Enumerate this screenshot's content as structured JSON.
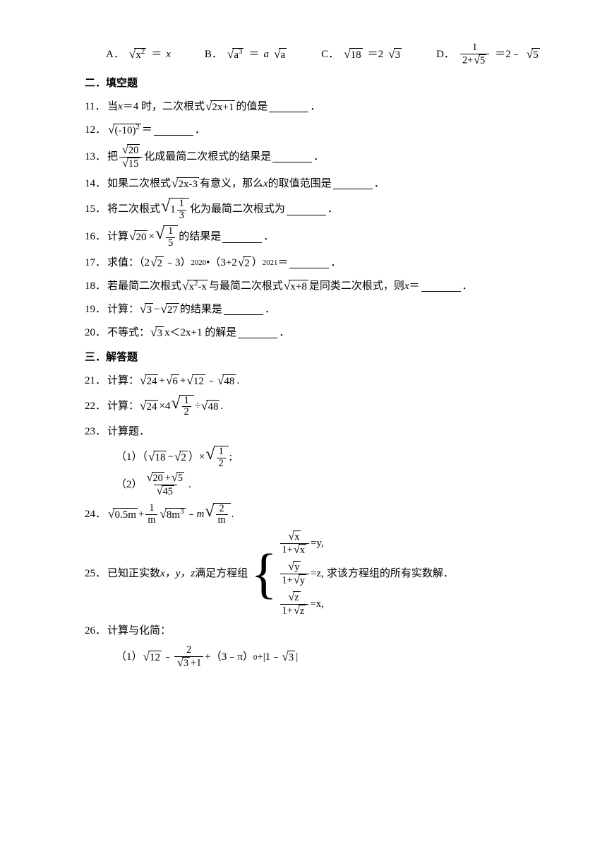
{
  "colors": {
    "text": "#000000",
    "bg": "#ffffff",
    "rule": "#000000"
  },
  "typography": {
    "body_pt": 15,
    "line_height": 1.8,
    "font": "SimSun / Times"
  },
  "q10": {
    "A": {
      "label": "A．",
      "lhs": "√(x²)",
      "eq": "＝",
      "rhs_var": "x"
    },
    "B": {
      "label": "B．",
      "lhs": "√(a³)",
      "eq": "＝",
      "rhs_a": "a",
      "rhs_rad": "a"
    },
    "C": {
      "label": "C．",
      "rad": "18",
      "eq": "＝2",
      "rhs_rad": "3"
    },
    "D": {
      "label": "D．",
      "frac_num": "1",
      "frac_den_pre": "2+",
      "frac_den_rad": "5",
      "eq": "＝2﹣",
      "rhs_rad": "5"
    }
  },
  "sec2": "二．填空题",
  "q11": {
    "num": "11．",
    "a": "当 ",
    "var": "x",
    "b": "＝4 时，二次根式",
    "rad": "2x+1",
    "c": "的值是",
    "d": "．"
  },
  "q12": {
    "num": "12．",
    "rad": "(-10)",
    "exp": "2",
    "eq": "＝",
    "d": "．"
  },
  "q13": {
    "num": "13．",
    "a": "把",
    "num_r": "20",
    "den_r": "15",
    "b": "化成最简二次根式的结果是",
    "d": "．"
  },
  "q14": {
    "num": "14．",
    "a": "如果二次根式",
    "rad": "2x-3",
    "b": "有意义，那么 ",
    "var": "x",
    "c": " 的取值范围是",
    "d": "．"
  },
  "q15": {
    "num": "15．",
    "a": "将二次根式",
    "mix_w": "1",
    "mix_n": "1",
    "mix_d": "3",
    "b": "化为最简二次根式为",
    "d": "．"
  },
  "q16": {
    "num": "16．",
    "a": "计算",
    "r1": "20",
    "op": "×",
    "fn": "1",
    "fd": "5",
    "b": "的结果是",
    "d": "．"
  },
  "q17": {
    "num": "17．",
    "a": "求值：（2",
    "r1": "2",
    "b": "﹣3）",
    "e1": "2020",
    "c": "•（3+2",
    "r2": "2",
    "d": "）",
    "e2": "2021",
    "eq": "＝",
    "end": "．"
  },
  "q18": {
    "num": "18．",
    "a": "若最简二次根式",
    "r1": "x",
    "e1": "2",
    "r1b": "-x",
    "b": "与最简二次根式",
    "r2": "x+8",
    "c": "是同类二次根式，则 ",
    "var": "x",
    "eq": "＝",
    "d": "．"
  },
  "q19": {
    "num": "19．",
    "a": "计算：",
    "r1": "3",
    "op": "−",
    "r2": "27",
    "b": "的结果是",
    "d": "．"
  },
  "q20": {
    "num": "20．",
    "a": "不等式：",
    "r1": "3",
    "b": " x＜2x+1 的解是",
    "d": "．"
  },
  "sec3": "三．解答题",
  "q21": {
    "num": "21．",
    "a": "计算：",
    "r1": "24",
    "p": " +",
    "r2": "6",
    "op2": "+",
    "r3": "12",
    "op3": "﹣",
    "r4": "48",
    "d": "."
  },
  "q22": {
    "num": "22．",
    "a": "计算：",
    "r1": "24",
    "op1": "×4",
    "fn": "1",
    "fd": "2",
    "op2": "÷",
    "r2": "48",
    "d": "."
  },
  "q23": {
    "num": "23．",
    "a": "计算题．",
    "s1": {
      "lab": "（1）（",
      "r1": "18",
      "op": "−",
      "r2": "2",
      "rb": "）×",
      "fn": "1",
      "fd": "2",
      "end": ";"
    },
    "s2": {
      "lab": "（2）",
      "n1": "20",
      "np": "+",
      "n2": "5",
      "dr": "45",
      "end": "."
    }
  },
  "q24": {
    "num": "24．",
    "r1": "0.5m",
    "p": " +",
    "fn": "1",
    "fd": "m",
    "r2a": "8m",
    "r2e": "3",
    "op": "﹣",
    "mvar": "m",
    "fn2": "2",
    "fd2": "m",
    "d": "."
  },
  "q25": {
    "num": "25．",
    "a": "已知正实数 ",
    "vars": "x，y，z",
    "b": " 满足方程组",
    "rows": [
      {
        "n": "x",
        "d": "x",
        "eq": "=y,"
      },
      {
        "n": "y",
        "d": "y",
        "eq": "=z,"
      },
      {
        "n": "z",
        "d": "z",
        "eq": "=x,"
      }
    ],
    "c": " 求该方程组的所有实数解．"
  },
  "q26": {
    "num": "26．",
    "a": "计算与化简：",
    "s1": {
      "lab": "（1）",
      "r1": "12",
      "op1": "﹣",
      "fn": "2",
      "fd_pre": "",
      "fd_r": "3",
      "fd_post": "+1",
      "op2": "+（3﹣π）",
      "e": "0",
      "op3": "+|1﹣",
      "r2": "3",
      "end": "|"
    }
  }
}
